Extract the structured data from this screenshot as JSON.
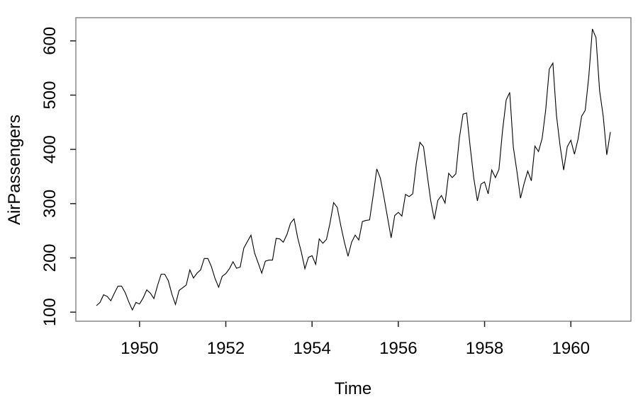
{
  "chart_data": {
    "type": "line",
    "title": "",
    "xlabel": "Time",
    "ylabel": "AirPassengers",
    "x_ticks": [
      1950,
      1952,
      1954,
      1956,
      1958,
      1960
    ],
    "y_ticks": [
      100,
      200,
      300,
      400,
      500,
      600
    ],
    "xlim": [
      1948.5233,
      1961.3934
    ],
    "ylim": [
      83.28,
      642.72
    ],
    "grid": false,
    "legend": "none",
    "line_color": "#000000",
    "tick_color": "#222222",
    "box_color": "#777777",
    "label_color": "#000000",
    "background": "#ffffff",
    "series": [
      {
        "name": "AirPassengers",
        "start_year": 1949,
        "frequency": 12,
        "values": [
          112,
          118,
          132,
          129,
          121,
          135,
          148,
          148,
          136,
          119,
          104,
          118,
          115,
          126,
          141,
          135,
          125,
          149,
          170,
          170,
          158,
          133,
          114,
          140,
          145,
          150,
          178,
          163,
          172,
          178,
          199,
          199,
          184,
          162,
          146,
          166,
          171,
          180,
          193,
          181,
          183,
          218,
          230,
          242,
          209,
          191,
          172,
          194,
          196,
          196,
          236,
          235,
          229,
          243,
          264,
          272,
          237,
          211,
          180,
          201,
          204,
          188,
          235,
          227,
          234,
          264,
          302,
          293,
          259,
          229,
          203,
          229,
          242,
          233,
          267,
          269,
          270,
          315,
          364,
          347,
          312,
          274,
          237,
          278,
          284,
          277,
          317,
          313,
          318,
          374,
          413,
          405,
          355,
          306,
          271,
          306,
          315,
          301,
          356,
          348,
          355,
          422,
          465,
          467,
          404,
          347,
          305,
          336,
          340,
          318,
          362,
          348,
          363,
          435,
          491,
          505,
          404,
          359,
          310,
          337,
          360,
          342,
          406,
          396,
          420,
          472,
          548,
          559,
          463,
          407,
          362,
          405,
          417,
          391,
          419,
          461,
          472,
          535,
          622,
          606,
          508,
          461,
          390,
          432
        ]
      }
    ]
  }
}
